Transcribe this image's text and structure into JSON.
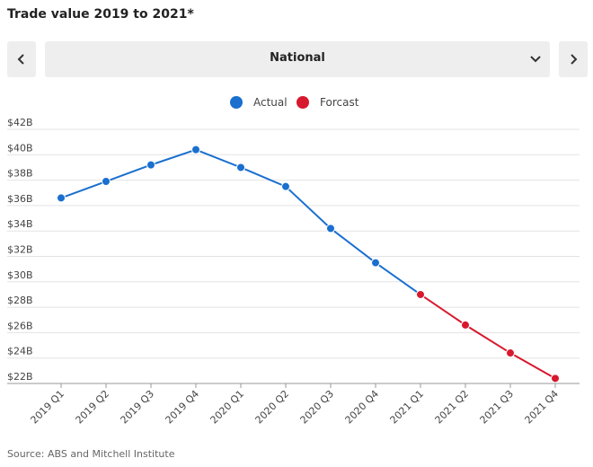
{
  "header": {
    "title": "Trade value 2019 to 2021*"
  },
  "selector": {
    "value": "National"
  },
  "chart_data": {
    "type": "line",
    "categories": [
      "2019 Q1",
      "2019 Q2",
      "2019 Q3",
      "2019 Q4",
      "2020 Q1",
      "2020 Q2",
      "2020 Q3",
      "2020 Q4",
      "2021 Q1",
      "2021 Q2",
      "2021 Q3",
      "2021 Q4"
    ],
    "series": [
      {
        "name": "Actual",
        "color": "#1a6fcf",
        "values": [
          36.6,
          37.9,
          39.2,
          40.4,
          39.0,
          37.5,
          34.2,
          31.5,
          29.0,
          null,
          null,
          null
        ]
      },
      {
        "name": "Forcast",
        "color": "#d7192e",
        "values": [
          null,
          null,
          null,
          null,
          null,
          null,
          null,
          null,
          29.0,
          26.6,
          24.4,
          22.4
        ]
      }
    ],
    "ylim": [
      22,
      42
    ],
    "yticks": [
      {
        "value": 22,
        "label": "$22B"
      },
      {
        "value": 24,
        "label": "$24B"
      },
      {
        "value": 26,
        "label": "$26B"
      },
      {
        "value": 28,
        "label": "$28B"
      },
      {
        "value": 30,
        "label": "$30B"
      },
      {
        "value": 32,
        "label": "$32B"
      },
      {
        "value": 34,
        "label": "$34B"
      },
      {
        "value": 36,
        "label": "$36B"
      },
      {
        "value": 38,
        "label": "$38B"
      },
      {
        "value": 40,
        "label": "$40B"
      },
      {
        "value": 42,
        "label": "$42B"
      }
    ],
    "grid": true
  },
  "source": "Source: ABS and Mitchell Institute"
}
